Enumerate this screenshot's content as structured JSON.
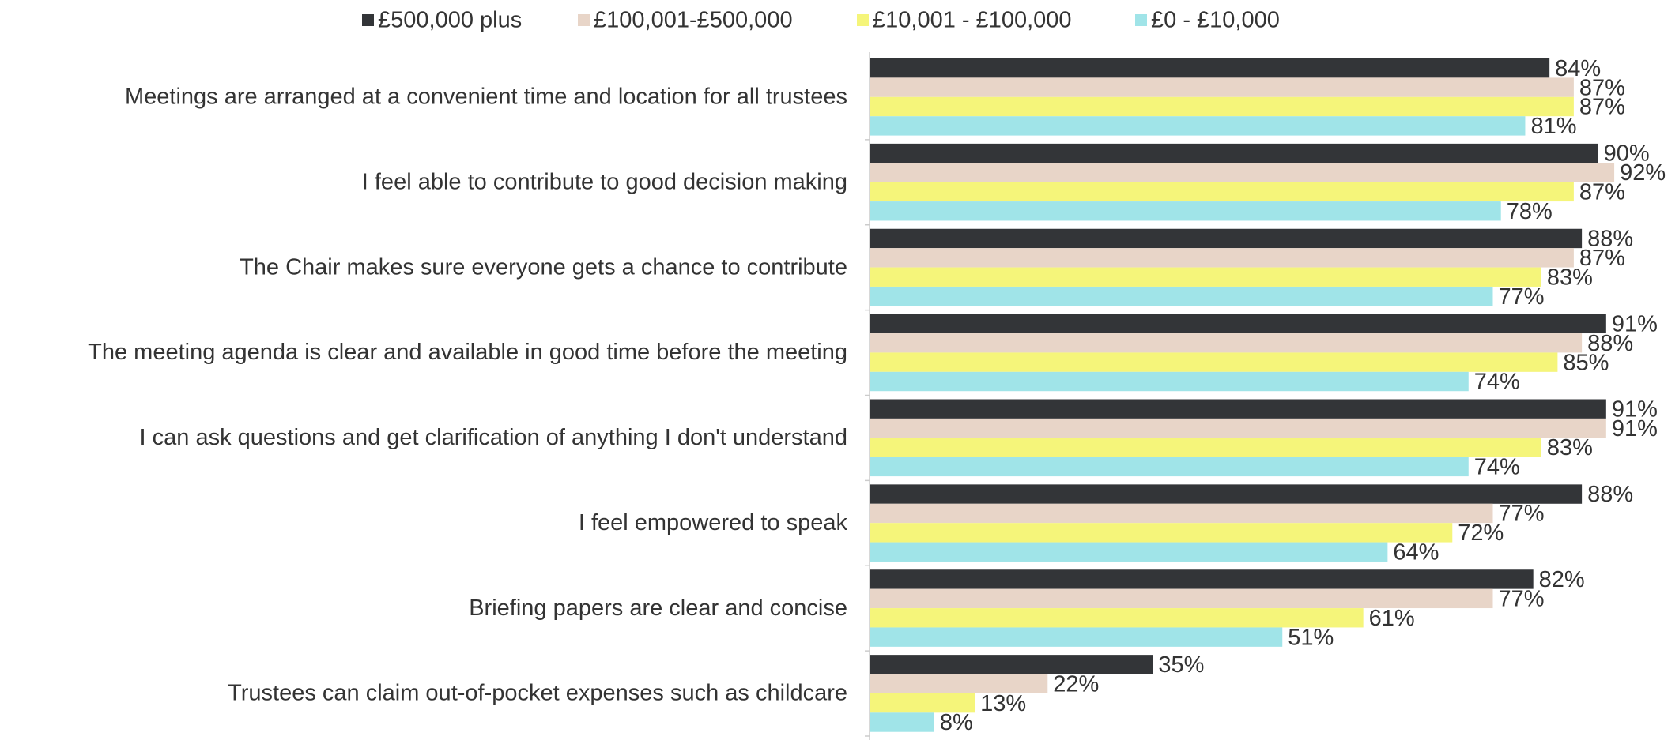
{
  "chart_data": {
    "type": "bar",
    "orientation": "horizontal",
    "legend": "top",
    "categories": [
      "Meetings are arranged at a convenient time and location for all trustees",
      "I feel able to contribute to good decision making",
      "The Chair makes sure everyone gets a chance to contribute",
      "The meeting agenda is clear and available in good time before the meeting",
      "I can ask questions and get clarification of anything I don't understand",
      "I feel empowered to speak",
      "Briefing papers are clear and concise",
      "Trustees can claim out-of-pocket expenses such as childcare"
    ],
    "xlim": [
      0,
      100
    ],
    "series": [
      {
        "name": "£500,000 plus",
        "color": "#333538",
        "values": [
          84,
          90,
          88,
          91,
          91,
          88,
          82,
          35
        ],
        "value_labels": [
          "84%",
          "90%",
          "88%",
          "91%",
          "91%",
          "88%",
          "82%",
          "35%"
        ]
      },
      {
        "name": "£100,001-£500,000",
        "color": "#e8d5c8",
        "values": [
          87,
          92,
          87,
          88,
          91,
          77,
          77,
          22
        ],
        "value_labels": [
          "87%",
          "92%",
          "87%",
          "88%",
          "91%",
          "77%",
          "77%",
          "22%"
        ]
      },
      {
        "name": "£10,001 - £100,000",
        "color": "#f5f57a",
        "values": [
          87,
          87,
          83,
          85,
          83,
          72,
          61,
          13
        ],
        "value_labels": [
          "87%",
          "87%",
          "83%",
          "85%",
          "83%",
          "72%",
          "61%",
          "13%"
        ]
      },
      {
        "name": "£0 - £10,000",
        "color": "#a0e4e8",
        "values": [
          81,
          78,
          77,
          74,
          74,
          64,
          51,
          8
        ],
        "value_labels": [
          "81%",
          "78%",
          "77%",
          "74%",
          "74%",
          "64%",
          "51%",
          "8%"
        ]
      }
    ]
  }
}
